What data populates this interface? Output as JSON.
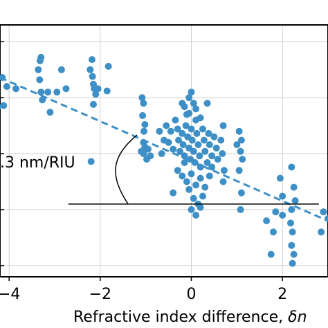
{
  "chart_data": {
    "type": "scatter",
    "xlabel_text": "Refractive index difference, ",
    "xlabel_symbol": "δn",
    "x_tick_labels": [
      "−4",
      "−2",
      "0",
      "2"
    ],
    "x_ticks": [
      -4,
      -2,
      0,
      2
    ],
    "xlim": [
      -4.2,
      3.0
    ],
    "annotation": ".3 nm/RIU",
    "grid": true,
    "marker_color": "#3d8fc6",
    "fit_line_color": "#3d8fc6",
    "fit_line": {
      "x": [
        -4.2,
        3.0
      ],
      "y": [
        0.78,
        -0.5
      ]
    },
    "ylim": [
      -1.0,
      1.25
    ],
    "reference_line": {
      "x": [
        -2.7,
        2.8
      ],
      "y": -0.35
    },
    "points": [
      {
        "x": -4.15,
        "y": 0.78
      },
      {
        "x": -4.05,
        "y": 0.7
      },
      {
        "x": -4.25,
        "y": 0.52
      },
      {
        "x": -4.12,
        "y": 0.53
      },
      {
        "x": -3.85,
        "y": 0.68
      },
      {
        "x": -3.3,
        "y": 0.96
      },
      {
        "x": -3.32,
        "y": 0.93
      },
      {
        "x": -3.36,
        "y": 0.85
      },
      {
        "x": -3.33,
        "y": 0.76
      },
      {
        "x": -3.3,
        "y": 0.65
      },
      {
        "x": -3.27,
        "y": 0.58
      },
      {
        "x": -3.15,
        "y": 0.65
      },
      {
        "x": -3.1,
        "y": 0.47
      },
      {
        "x": -2.95,
        "y": 0.65
      },
      {
        "x": -2.85,
        "y": 0.85
      },
      {
        "x": -2.75,
        "y": 0.68
      },
      {
        "x": -2.18,
        "y": 0.94
      },
      {
        "x": -2.22,
        "y": 0.85
      },
      {
        "x": -2.17,
        "y": 0.79
      },
      {
        "x": -2.15,
        "y": 0.72
      },
      {
        "x": -2.13,
        "y": 0.68
      },
      {
        "x": -2.15,
        "y": 0.54
      },
      {
        "x": -2.1,
        "y": 0.63
      },
      {
        "x": -2.05,
        "y": 0.68
      },
      {
        "x": -1.82,
        "y": 0.88
      },
      {
        "x": -1.85,
        "y": 0.66
      },
      {
        "x": -2.2,
        "y": 0.03
      },
      {
        "x": -1.08,
        "y": 0.6
      },
      {
        "x": -1.05,
        "y": 0.55
      },
      {
        "x": -1.07,
        "y": 0.44
      },
      {
        "x": -1.02,
        "y": 0.36
      },
      {
        "x": -1.04,
        "y": 0.3
      },
      {
        "x": -1.05,
        "y": 0.2
      },
      {
        "x": -1.05,
        "y": 0.1
      },
      {
        "x": -1.02,
        "y": 0.16
      },
      {
        "x": -0.95,
        "y": 0.14
      },
      {
        "x": -0.98,
        "y": 0.05
      },
      {
        "x": -0.9,
        "y": 0.08
      },
      {
        "x": -1.1,
        "y": 0.12
      },
      {
        "x": -0.55,
        "y": 0.35
      },
      {
        "x": -0.5,
        "y": 0.2
      },
      {
        "x": -0.45,
        "y": 0.3
      },
      {
        "x": -0.4,
        "y": 0.14
      },
      {
        "x": -0.35,
        "y": 0.4
      },
      {
        "x": -0.3,
        "y": 0.32
      },
      {
        "x": -0.28,
        "y": 0.22
      },
      {
        "x": -0.25,
        "y": 0.12
      },
      {
        "x": -0.2,
        "y": 0.28
      },
      {
        "x": -0.18,
        "y": 0.18
      },
      {
        "x": -0.15,
        "y": 0.08
      },
      {
        "x": -0.12,
        "y": 0.35
      },
      {
        "x": -0.1,
        "y": 0.45
      },
      {
        "x": -0.08,
        "y": 0.25
      },
      {
        "x": -0.05,
        "y": 0.15
      },
      {
        "x": -0.02,
        "y": 0.05
      },
      {
        "x": 0.0,
        "y": 0.32
      },
      {
        "x": 0.02,
        "y": 0.22
      },
      {
        "x": 0.05,
        "y": 0.12
      },
      {
        "x": 0.08,
        "y": 0.02
      },
      {
        "x": 0.1,
        "y": 0.4
      },
      {
        "x": 0.12,
        "y": 0.28
      },
      {
        "x": 0.15,
        "y": 0.18
      },
      {
        "x": 0.18,
        "y": 0.08
      },
      {
        "x": 0.2,
        "y": -0.02
      },
      {
        "x": 0.25,
        "y": 0.32
      },
      {
        "x": 0.28,
        "y": 0.22
      },
      {
        "x": 0.3,
        "y": 0.12
      },
      {
        "x": 0.35,
        "y": 0.02
      },
      {
        "x": 0.38,
        "y": 0.28
      },
      {
        "x": 0.4,
        "y": 0.18
      },
      {
        "x": 0.45,
        "y": 0.08
      },
      {
        "x": 0.5,
        "y": 0.25
      },
      {
        "x": 0.55,
        "y": 0.15
      },
      {
        "x": 0.58,
        "y": 0.05
      },
      {
        "x": -0.2,
        "y": 0.55
      },
      {
        "x": -0.15,
        "y": 0.52
      },
      {
        "x": -0.05,
        "y": 0.6
      },
      {
        "x": 0.0,
        "y": 0.65
      },
      {
        "x": -0.05,
        "y": 0.46
      },
      {
        "x": 0.05,
        "y": 0.55
      },
      {
        "x": 0.1,
        "y": 0.5
      },
      {
        "x": 0.2,
        "y": 0.42
      },
      {
        "x": 0.35,
        "y": 0.55
      },
      {
        "x": -0.6,
        "y": 0.22
      },
      {
        "x": -0.65,
        "y": 0.1
      },
      {
        "x": -0.7,
        "y": 0.3
      },
      {
        "x": 0.65,
        "y": 0.22
      },
      {
        "x": 0.7,
        "y": 0.35
      },
      {
        "x": 0.72,
        "y": -0.05
      },
      {
        "x": 0.68,
        "y": 0.1
      },
      {
        "x": -0.3,
        "y": -0.05
      },
      {
        "x": -0.2,
        "y": -0.1
      },
      {
        "x": -0.1,
        "y": -0.15
      },
      {
        "x": 0.0,
        "y": -0.08
      },
      {
        "x": 0.1,
        "y": -0.18
      },
      {
        "x": 0.2,
        "y": -0.12
      },
      {
        "x": 0.3,
        "y": -0.2
      },
      {
        "x": -0.4,
        "y": -0.25
      },
      {
        "x": 0.05,
        "y": -0.3
      },
      {
        "x": 0.15,
        "y": -0.35
      },
      {
        "x": 0.0,
        "y": -0.4
      },
      {
        "x": 0.1,
        "y": -0.45
      },
      {
        "x": 0.2,
        "y": -0.38
      },
      {
        "x": -0.05,
        "y": -0.22
      },
      {
        "x": 0.4,
        "y": -0.1
      },
      {
        "x": 0.45,
        "y": -0.02
      },
      {
        "x": 0.7,
        "y": -0.15
      },
      {
        "x": -0.15,
        "y": 0.02
      },
      {
        "x": 0.25,
        "y": -0.28
      },
      {
        "x": 1.05,
        "y": 0.3
      },
      {
        "x": 1.1,
        "y": 0.22
      },
      {
        "x": 1.08,
        "y": 0.12
      },
      {
        "x": 1.12,
        "y": 0.05
      },
      {
        "x": 1.05,
        "y": -0.05
      },
      {
        "x": 1.1,
        "y": -0.25
      },
      {
        "x": 1.08,
        "y": -0.4
      },
      {
        "x": 1.0,
        "y": 0.18
      },
      {
        "x": 1.95,
        "y": -0.12
      },
      {
        "x": 2.0,
        "y": -0.28
      },
      {
        "x": 2.2,
        "y": -0.02
      },
      {
        "x": 2.25,
        "y": -0.2
      },
      {
        "x": 2.28,
        "y": -0.32
      },
      {
        "x": 2.2,
        "y": -0.4
      },
      {
        "x": 2.0,
        "y": -0.45
      },
      {
        "x": 2.18,
        "y": -0.52
      },
      {
        "x": 2.22,
        "y": -0.6
      },
      {
        "x": 2.2,
        "y": -0.72
      },
      {
        "x": 2.25,
        "y": -0.8
      },
      {
        "x": 2.22,
        "y": -0.88
      },
      {
        "x": 1.65,
        "y": -0.5
      },
      {
        "x": 1.85,
        "y": -0.42
      },
      {
        "x": 1.8,
        "y": -0.6
      },
      {
        "x": 1.75,
        "y": -0.8
      },
      {
        "x": 2.9,
        "y": -0.42
      },
      {
        "x": 2.85,
        "y": -0.6
      },
      {
        "x": 3.0,
        "y": -0.48
      }
    ]
  }
}
